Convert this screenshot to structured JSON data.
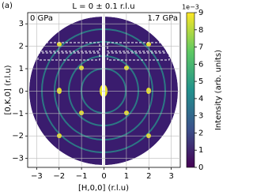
{
  "chart_data": {
    "type": "heatmap",
    "panel_label": "(a)",
    "title": "L = 0 ± 0.1 r.l.u",
    "annotations": [
      "0 GPa",
      "1.7 GPa"
    ],
    "x_label": "[H,0,0] (r.l.u)",
    "y_label": "[0,K,0] (r.l.u)",
    "xlim": [
      -3.4,
      3.4
    ],
    "ylim": [
      -3.4,
      3.5
    ],
    "xticks": [
      {
        "value": -3,
        "label": "−3"
      },
      {
        "value": -2,
        "label": "−2"
      },
      {
        "value": -1,
        "label": "−1"
      },
      0,
      1,
      2,
      3
    ],
    "yticks": [
      {
        "value": -3,
        "label": "−3"
      },
      {
        "value": -2,
        "label": "−2"
      },
      {
        "value": -1,
        "label": "−1"
      },
      0,
      1,
      2,
      3
    ],
    "grid": true,
    "colorbar": {
      "label": "Intensity (arb. units)",
      "scale_label": "1e−3",
      "colormap": "viridis",
      "lim": [
        0,
        9
      ],
      "ticks": [
        0,
        1,
        2,
        3,
        4,
        5,
        6,
        7,
        8,
        9
      ]
    }
  }
}
